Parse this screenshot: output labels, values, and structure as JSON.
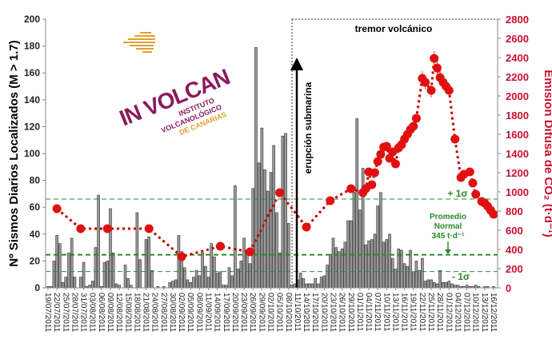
{
  "chart_data": {
    "type": "bar+line",
    "title": "",
    "ylabel_left": "Nº Sismos Diarios Localizados (M > 1.7)",
    "ylabel_right": "Emisión Difusa de CO₂ (t·d⁻¹)",
    "ylim_left": [
      0,
      200
    ],
    "ylim_right": [
      0,
      2800
    ],
    "yticks_left": [
      "0",
      "20",
      "40",
      "60",
      "80",
      "100",
      "120",
      "140",
      "160",
      "180",
      "200"
    ],
    "yticks_right": [
      "0",
      "200",
      "400",
      "600",
      "800",
      "1000",
      "1200",
      "1400",
      "1600",
      "1800",
      "2000",
      "2200",
      "2400",
      "2600",
      "2800"
    ],
    "grid": false,
    "x_tick_labels": [
      "19/07/2011",
      "22/07/2011",
      "25/07/2011",
      "28/07/2011",
      "31/07/2011",
      "03/08/2011",
      "06/08/2011",
      "09/08/2011",
      "12/08/2011",
      "15/08/2011",
      "18/08/2011",
      "21/08/2011",
      "24/08/2011",
      "27/08/2011",
      "30/08/2011",
      "02/09/2011",
      "05/09/2011",
      "08/09/2011",
      "11/09/2011",
      "14/09/2011",
      "17/09/2011",
      "20/09/2011",
      "23/09/2011",
      "26/09/2011",
      "29/09/2011",
      "02/10/2011",
      "05/10/2011",
      "08/10/2011",
      "11/10/2011",
      "14/10/2011",
      "17/10/2011",
      "20/10/2011",
      "23/10/2011",
      "26/10/2011",
      "29/10/2011",
      "01/11/2011",
      "04/11/2011",
      "07/11/2011",
      "10/11/2011",
      "13/11/2011",
      "16/11/2011",
      "19/11/2011",
      "22/11/2011",
      "25/11/2011",
      "28/11/2011",
      "01/12/2011",
      "04/12/2011",
      "07/12/2011",
      "10/12/2011",
      "13/12/2011",
      "16/12/2011"
    ],
    "bars": {
      "axis": "left",
      "start_date": "19/07/2011",
      "interval": "daily",
      "color": "#9a9a9a",
      "values": [
        1,
        1,
        20,
        39,
        33,
        4,
        8,
        26,
        37,
        8,
        0,
        8,
        19,
        1,
        2,
        5,
        30,
        69,
        1,
        19,
        20,
        59,
        26,
        3,
        2,
        0,
        17,
        7,
        2,
        0,
        56,
        21,
        0,
        36,
        38,
        13,
        0,
        1,
        0,
        1,
        0,
        4,
        5,
        6,
        39,
        27,
        15,
        6,
        4,
        8,
        13,
        9,
        26,
        16,
        8,
        33,
        23,
        11,
        12,
        2,
        2,
        15,
        9,
        76,
        14,
        20,
        37,
        26,
        18,
        74,
        179,
        93,
        119,
        88,
        72,
        86,
        106,
        56,
        26,
        113,
        115,
        48,
        2,
        3,
        6,
        11,
        7,
        3,
        3,
        3,
        7,
        3,
        8,
        9,
        17,
        25,
        37,
        30,
        27,
        29,
        34,
        50,
        50,
        71,
        126,
        58,
        89,
        32,
        35,
        36,
        40,
        61,
        71,
        34,
        36,
        40,
        22,
        14,
        29,
        28,
        18,
        16,
        28,
        12,
        20,
        13,
        22,
        5,
        6,
        6,
        4,
        3,
        13,
        4,
        4,
        5,
        3,
        2,
        2,
        1,
        1,
        2,
        1,
        1,
        2,
        1,
        0,
        1,
        1,
        0,
        1
      ]
    },
    "co2": {
      "axis": "right",
      "color": "#e01010",
      "points": [
        [
          "22/07/2011",
          825
        ],
        [
          "30/07/2011",
          617
        ],
        [
          "08/08/2011",
          617
        ],
        [
          "22/08/2011",
          617
        ],
        [
          "02/09/2011",
          325
        ],
        [
          "15/09/2011",
          433
        ],
        [
          "25/09/2011",
          375
        ],
        [
          "05/10/2011",
          992
        ],
        [
          "14/10/2011",
          633
        ],
        [
          "22/10/2011",
          908
        ],
        [
          "29/10/2011",
          1033
        ],
        [
          "02/11/2011",
          992
        ],
        [
          "03/11/2011",
          1033
        ],
        [
          "04/11/2011",
          1208
        ],
        [
          "05/11/2011",
          1075
        ],
        [
          "06/11/2011",
          1200
        ],
        [
          "07/11/2011",
          1317
        ],
        [
          "08/11/2011",
          1392
        ],
        [
          "09/11/2011",
          1467
        ],
        [
          "10/11/2011",
          1475
        ],
        [
          "11/11/2011",
          1350
        ],
        [
          "12/11/2011",
          1417
        ],
        [
          "13/11/2011",
          1292
        ],
        [
          "14/11/2011",
          1458
        ],
        [
          "15/11/2011",
          1492
        ],
        [
          "16/11/2011",
          1550
        ],
        [
          "17/11/2011",
          1600
        ],
        [
          "18/11/2011",
          1650
        ],
        [
          "19/11/2011",
          1683
        ],
        [
          "20/11/2011",
          1767
        ],
        [
          "22/11/2011",
          2183
        ],
        [
          "23/11/2011",
          2142
        ],
        [
          "25/11/2011",
          2058
        ],
        [
          "26/11/2011",
          2392
        ],
        [
          "27/11/2011",
          2292
        ],
        [
          "28/11/2011",
          2192
        ],
        [
          "29/11/2011",
          2142
        ],
        [
          "30/11/2011",
          2100
        ],
        [
          "01/12/2011",
          2058
        ],
        [
          "03/12/2011",
          1550
        ],
        [
          "05/12/2011",
          1150
        ],
        [
          "06/12/2011",
          1183
        ],
        [
          "08/12/2011",
          1208
        ],
        [
          "09/12/2011",
          1092
        ],
        [
          "10/12/2011",
          975
        ],
        [
          "12/12/2011",
          900
        ],
        [
          "13/12/2011",
          883
        ],
        [
          "14/12/2011",
          850
        ],
        [
          "15/12/2011",
          808
        ],
        [
          "16/12/2011",
          767
        ]
      ]
    },
    "reference_lines": {
      "color": "#2a8a2a",
      "plus_1sigma": {
        "label": "+ 1σ",
        "value": 925
      },
      "mean": {
        "label_lines": [
          "Promedio",
          "Normal",
          "345 t·d⁻¹"
        ],
        "value": 345
      },
      "minus_1sigma": {
        "label": "- 1σ",
        "value": 170
      }
    },
    "annotations": {
      "tremor": "tremor volcánico",
      "tremor_start_date": "10/10/2011",
      "eruption": "erupción submarina"
    }
  },
  "logo": {
    "mark": "IN VOLCAN",
    "line1": "INSTITUTO",
    "line2": "VOLCANOLÓGICO",
    "line3": "DE CANARIAS",
    "colors": {
      "purple": "#8b1a5e",
      "gold": "#e0a030"
    }
  }
}
